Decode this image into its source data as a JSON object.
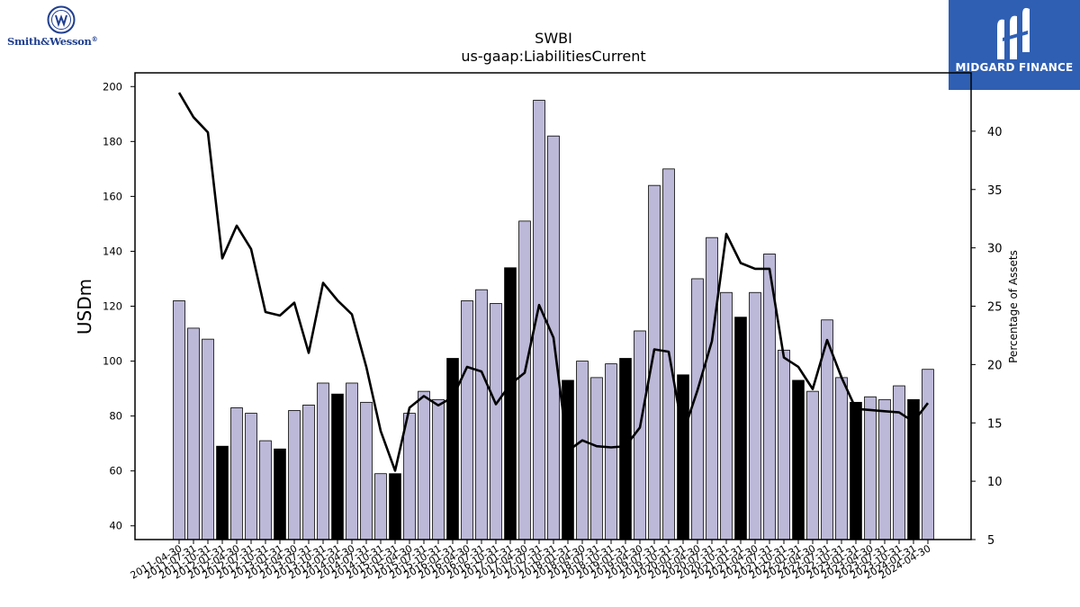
{
  "header": {
    "ticker": "SWBI",
    "metric": "us-gaap:LiabilitiesCurrent"
  },
  "branding": {
    "company_logo_text": "Smith&Wesson",
    "company_logo_mark": "®",
    "publisher_name": "MIDGARD FINANCE",
    "publisher_bg": "#2f5fb3"
  },
  "colors": {
    "bar_default": "#bcb8d8",
    "bar_highlight": "#000000",
    "line": "#000000"
  },
  "chart_data": {
    "type": "bar",
    "title": "SWBI",
    "subtitle": "us-gaap:LiabilitiesCurrent",
    "ylabel": "USDm",
    "y2label": "Percentage of Assets",
    "ylim": [
      35,
      205
    ],
    "y2lim": [
      5,
      45
    ],
    "yticks": [
      40,
      60,
      80,
      100,
      120,
      140,
      160,
      180,
      200
    ],
    "y2ticks": [
      5,
      10,
      15,
      20,
      25,
      30,
      35,
      40
    ],
    "grid": false,
    "categories": [
      "2011-04-30",
      "2011-07-31",
      "2011-10-31",
      "2012-01-31",
      "2012-04-30",
      "2012-07-31",
      "2012-10-31",
      "2013-01-31",
      "2013-04-30",
      "2013-07-31",
      "2013-10-31",
      "2014-01-31",
      "2014-04-30",
      "2014-07-31",
      "2014-10-31",
      "2015-01-31",
      "2015-04-30",
      "2015-07-31",
      "2015-10-31",
      "2016-01-31",
      "2016-04-30",
      "2016-07-31",
      "2016-10-31",
      "2017-01-31",
      "2017-04-30",
      "2017-07-31",
      "2017-10-31",
      "2018-01-31",
      "2018-04-30",
      "2018-07-31",
      "2018-10-31",
      "2019-01-31",
      "2019-04-30",
      "2019-07-31",
      "2019-10-31",
      "2020-01-31",
      "2020-04-30",
      "2020-07-31",
      "2020-10-31",
      "2021-01-31",
      "2021-04-30",
      "2021-07-31",
      "2021-10-31",
      "2022-01-31",
      "2022-04-30",
      "2022-07-31",
      "2022-10-31",
      "2023-01-31",
      "2023-04-30",
      "2023-07-31",
      "2023-10-31",
      "2024-01-31",
      "2024-04-30"
    ],
    "highlight_indices": [
      3,
      7,
      11,
      15,
      19,
      23,
      27,
      31,
      35,
      39,
      43,
      47,
      51
    ],
    "series": [
      {
        "name": "LiabilitiesCurrent",
        "axis": "left",
        "type": "bar",
        "values": [
          122,
          112,
          108,
          69,
          83,
          81,
          71,
          68,
          82,
          84,
          92,
          88,
          92,
          85,
          59,
          59,
          81,
          89,
          86,
          101,
          122,
          126,
          121,
          134,
          151,
          195,
          182,
          93,
          100,
          94,
          99,
          101,
          111,
          164,
          170,
          95,
          130,
          145,
          125,
          116,
          125,
          139,
          104,
          93,
          89,
          115,
          94,
          85,
          87,
          86,
          91,
          86,
          97
        ]
      },
      {
        "name": "Percentage of Assets",
        "axis": "right",
        "type": "line",
        "values": [
          43.3,
          41.2,
          39.9,
          29.1,
          31.9,
          29.9,
          24.5,
          24.2,
          25.3,
          21.0,
          27.0,
          25.5,
          24.3,
          19.8,
          14.3,
          10.9,
          16.3,
          17.3,
          16.5,
          17.2,
          19.8,
          19.4,
          16.6,
          18.3,
          19.3,
          25.1,
          22.3,
          12.6,
          13.5,
          13.0,
          12.9,
          13.0,
          14.6,
          21.3,
          21.1,
          14.1,
          17.8,
          22.0,
          31.2,
          28.7,
          28.2,
          28.2,
          20.6,
          19.8,
          17.9,
          22.1,
          18.9,
          16.2,
          16.1,
          16.0,
          15.9,
          15.1,
          16.7
        ]
      }
    ]
  }
}
